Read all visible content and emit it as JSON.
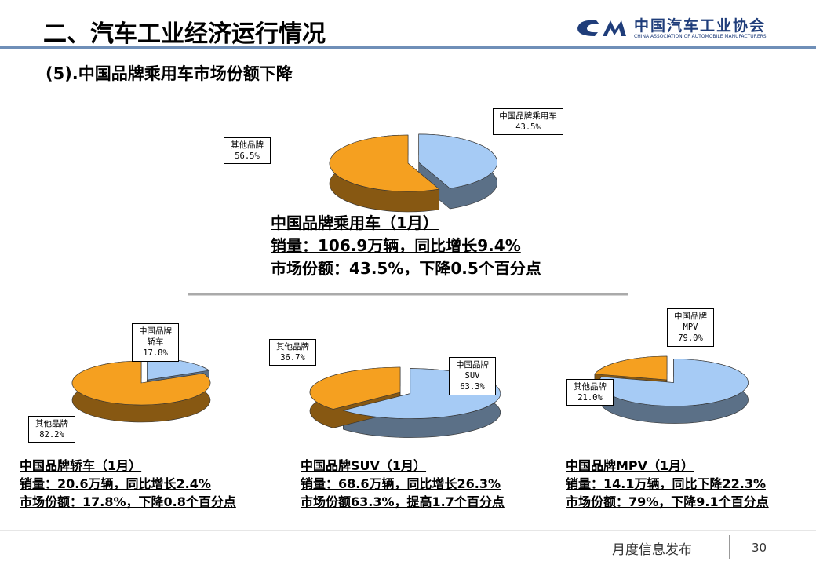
{
  "header": {
    "title": "二、汽车工业经济运行情况",
    "logo_name": "中国汽车工业协会",
    "logo_subtitle": "CHINA ASSOCIATION OF AUTOMOBILE MANUFACTURERS",
    "subtitle": "(5).中国品牌乘用车市场份额下降"
  },
  "chart_data": [
    {
      "type": "pie",
      "title": "中国品牌乘用车（1月）",
      "annotations": [
        "销量：106.9万辆，同比增长9.4%",
        "市场份额：43.5%，下降0.5个百分点"
      ],
      "categories": [
        "中国品牌乘用车",
        "其他品牌"
      ],
      "values": [
        43.5,
        56.5
      ],
      "value_labels": [
        "43.5%",
        "56.5%"
      ],
      "colors": [
        "#a6cbf5",
        "#f5a020"
      ]
    },
    {
      "type": "pie",
      "title": "中国品牌轿车（1月）",
      "annotations": [
        "销量：20.6万辆，同比增长2.4%",
        "市场份额：17.8%，下降0.8个百分点"
      ],
      "categories": [
        "中国品牌轿车",
        "其他品牌"
      ],
      "values": [
        17.8,
        82.2
      ],
      "value_labels": [
        "17.8%",
        "82.2%"
      ],
      "colors": [
        "#a6cbf5",
        "#f5a020"
      ]
    },
    {
      "type": "pie",
      "title": "中国品牌SUV（1月）",
      "annotations": [
        "销量：68.6万辆，同比增长26.3%",
        "市场份额63.3%，提高1.7个百分点"
      ],
      "categories": [
        "中国品牌SUV",
        "其他品牌"
      ],
      "values": [
        63.3,
        36.7
      ],
      "value_labels": [
        "63.3%",
        "36.7%"
      ],
      "colors": [
        "#a6cbf5",
        "#f5a020"
      ]
    },
    {
      "type": "pie",
      "title": "中国品牌MPV（1月）",
      "annotations": [
        "销量：14.1万辆，同比下降22.3%",
        "市场份额：79%，下降9.1个百分点"
      ],
      "categories": [
        "中国品牌MPV",
        "其他品牌"
      ],
      "values": [
        79.0,
        21.0
      ],
      "value_labels": [
        "79.0%",
        "21.0%"
      ],
      "colors": [
        "#a6cbf5",
        "#f5a020"
      ]
    }
  ],
  "footer": {
    "text": "月度信息发布",
    "page": "30"
  }
}
